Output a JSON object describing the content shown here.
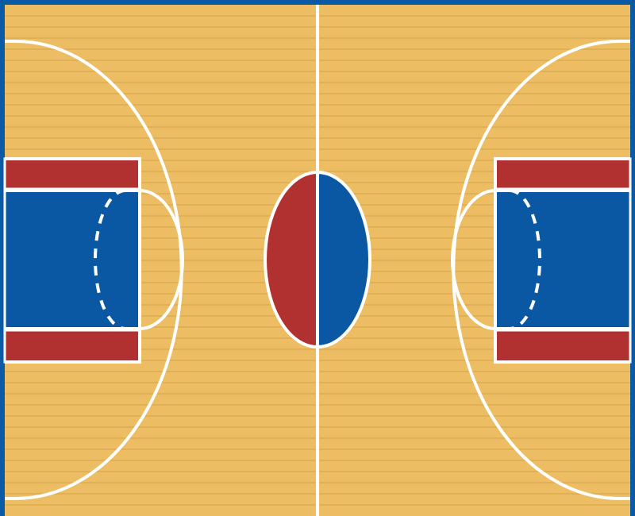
{
  "colors": {
    "border": "#0b5aa6",
    "wood": "#ecbd62",
    "plank_line": "#d9a94f",
    "lines": "#ffffff",
    "red": "#b0312f",
    "blue": "#0a58a4"
  },
  "court": {
    "plank_count": 46,
    "left_color_zone": "red",
    "right_color_zone": "blue"
  }
}
